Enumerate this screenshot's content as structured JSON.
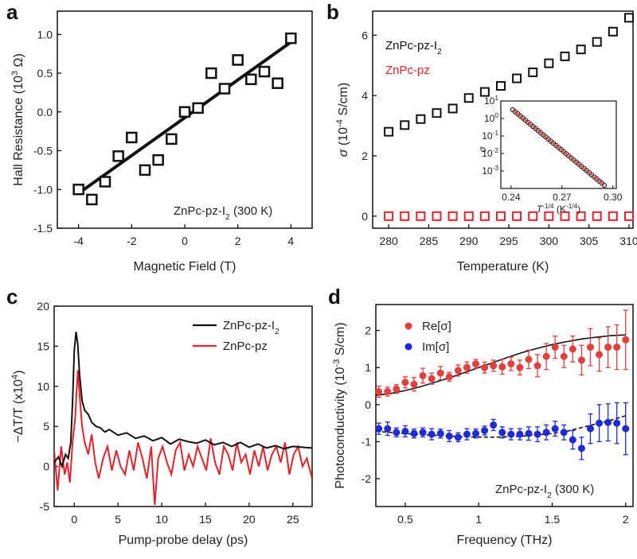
{
  "colors": {
    "black": "#111111",
    "red": "#e8212a",
    "red_marker": "#e0403f",
    "red_fit": "#e03a3a",
    "blue": "#1f2bd4",
    "light_red": "#f06b6b"
  },
  "panel_labels": [
    "a",
    "b",
    "c",
    "d"
  ],
  "chart_data": [
    {
      "id": "a",
      "type": "scatter",
      "xlabel": "Magnetic Field (T)",
      "ylabel": "Hall Resistance (10^3 Ω)",
      "ylabel_parts": {
        "base": "Hall Resistance (10",
        "sup": "3",
        "unit": " Ω)"
      },
      "annotation": "ZnPc-pz-I",
      "annotation_sub": "2",
      "annotation_tail": " (300 K)",
      "xlim": [
        -4.8,
        4.8
      ],
      "ylim": [
        -1.5,
        1.3
      ],
      "xticks": [
        -4,
        -2,
        0,
        2,
        4
      ],
      "xtick_labels": [
        "-4",
        "-2",
        "0",
        "2",
        "4"
      ],
      "yticks": [
        -1.5,
        -1.0,
        -0.5,
        0.0,
        0.5,
        1.0
      ],
      "ytick_labels": [
        "-1.5",
        "-1.0",
        "-0.5",
        "0.0",
        "0.5",
        "1.0"
      ],
      "series": [
        {
          "name": "data",
          "marker": "open-square",
          "x": [
            -4.0,
            -3.5,
            -3.0,
            -2.5,
            -2.0,
            -1.5,
            -1.0,
            -0.5,
            0.0,
            0.5,
            1.0,
            1.5,
            2.0,
            2.5,
            3.0,
            3.5,
            4.0
          ],
          "y": [
            -1.0,
            -1.13,
            -0.9,
            -0.57,
            -0.33,
            -0.75,
            -0.62,
            -0.35,
            0.0,
            0.05,
            0.5,
            0.3,
            0.67,
            0.42,
            0.52,
            0.37,
            0.95
          ]
        },
        {
          "name": "fit",
          "type": "line",
          "x": [
            -4.0,
            4.0
          ],
          "y": [
            -1.05,
            0.9
          ]
        }
      ]
    },
    {
      "id": "b",
      "type": "scatter",
      "xlabel": "Temperature (K)",
      "ylabel_parts": {
        "sym": "σ",
        "base": " (10",
        "sup": "-4",
        "unit": " S/cm)"
      },
      "xlim": [
        278,
        310.5
      ],
      "ylim": [
        -0.4,
        6.8
      ],
      "xticks": [
        280,
        285,
        290,
        295,
        300,
        305,
        310
      ],
      "xtick_labels": [
        "280",
        "285",
        "290",
        "295",
        "300",
        "305",
        "310"
      ],
      "yticks": [
        0,
        2,
        4,
        6
      ],
      "ytick_labels": [
        "0",
        "2",
        "4",
        "6"
      ],
      "legend": [
        {
          "name": "ZnPc-pz-I",
          "sub": "2",
          "color": "#111111"
        },
        {
          "name": "ZnPc-pz",
          "sub": "",
          "color": "#e8212a"
        }
      ],
      "series": [
        {
          "name": "ZnPc-pz-I2",
          "marker": "open-square",
          "color": "#111111",
          "x": [
            280,
            282,
            284,
            286,
            288,
            290,
            292,
            294,
            296,
            298,
            300,
            302,
            304,
            306,
            308,
            310
          ],
          "y": [
            2.8,
            3.02,
            3.22,
            3.42,
            3.57,
            3.92,
            4.12,
            4.32,
            4.57,
            4.77,
            5.07,
            5.3,
            5.53,
            5.78,
            6.12,
            6.58
          ]
        },
        {
          "name": "ZnPc-pz",
          "marker": "open-square",
          "color": "#e8212a",
          "x": [
            280,
            282,
            284,
            286,
            288,
            290,
            292,
            294,
            296,
            298,
            300,
            302,
            304,
            306,
            308,
            310
          ],
          "y": [
            0,
            0,
            0,
            0,
            0,
            0,
            0,
            0,
            0,
            0,
            0,
            0,
            0,
            0,
            0,
            0
          ]
        }
      ],
      "inset": {
        "type": "scatter",
        "xlabel_parts": {
          "sym": "T",
          "sup": "-1/4",
          "unit": " (K",
          "usup": "-1/4",
          "close": ")"
        },
        "ylabel": "σ",
        "xlim": [
          0.234,
          0.302
        ],
        "ylog_range": [
          -4,
          1
        ],
        "xticks": [
          0.24,
          0.27,
          0.3
        ],
        "xtick_labels": [
          "0.24",
          "0.27",
          "0.30"
        ],
        "ytick_exps": [
          1,
          0,
          -1,
          -2,
          -3
        ],
        "ytick_base": "10",
        "ytick_labels": [
          "1",
          "0",
          "-1",
          "-2",
          "-3"
        ],
        "points_x": [
          0.241,
          0.2425,
          0.244,
          0.2455,
          0.247,
          0.2485,
          0.25,
          0.2515,
          0.253,
          0.2545,
          0.256,
          0.2575,
          0.259,
          0.2605,
          0.262,
          0.2635,
          0.265,
          0.2665,
          0.268,
          0.2695,
          0.271,
          0.2725,
          0.274,
          0.2755,
          0.277,
          0.2785,
          0.28,
          0.2815,
          0.283,
          0.2845,
          0.286,
          0.2875,
          0.289,
          0.2905,
          0.292,
          0.2935,
          0.295
        ],
        "points_log_y": [
          0.5,
          0.38,
          0.26,
          0.14,
          0.02,
          -0.1,
          -0.22,
          -0.34,
          -0.46,
          -0.58,
          -0.7,
          -0.82,
          -0.94,
          -1.06,
          -1.18,
          -1.3,
          -1.42,
          -1.54,
          -1.66,
          -1.78,
          -1.9,
          -2.02,
          -2.14,
          -2.26,
          -2.38,
          -2.5,
          -2.62,
          -2.74,
          -2.86,
          -2.98,
          -3.1,
          -3.22,
          -3.34,
          -3.46,
          -3.58,
          -3.7,
          -3.82
        ],
        "fit_x": [
          0.241,
          0.295
        ],
        "fit_log_y": [
          0.5,
          -3.82
        ]
      }
    },
    {
      "id": "c",
      "type": "line",
      "xlabel": "Pump-probe delay (ps)",
      "ylabel_parts": {
        "base": "−ΔT/T (x10",
        "sup": "4",
        "unit": ")"
      },
      "xlim": [
        -2.3,
        27.2
      ],
      "ylim": [
        -5,
        20
      ],
      "xticks": [
        0,
        5,
        10,
        15,
        20,
        25
      ],
      "xtick_labels": [
        "0",
        "5",
        "10",
        "15",
        "20",
        "25"
      ],
      "yticks": [
        -5,
        0,
        5,
        10,
        15,
        20
      ],
      "ytick_labels": [
        "-5",
        "0",
        "5",
        "10",
        "15",
        "20"
      ],
      "legend": [
        {
          "name": "ZnPc-pz-I",
          "sub": "2",
          "color": "#111111"
        },
        {
          "name": "ZnPc-pz",
          "sub": "",
          "color": "#e8212a"
        }
      ],
      "series": [
        {
          "name": "ZnPc-pz-I2",
          "color": "#111111",
          "x": [
            -2.3,
            -1.8,
            -1.4,
            -1.0,
            -0.7,
            -0.4,
            -0.2,
            0.0,
            0.2,
            0.4,
            0.6,
            0.9,
            1.2,
            1.6,
            2.0,
            2.5,
            3.0,
            3.5,
            4.0,
            5,
            6,
            7,
            8,
            9,
            10,
            11,
            12,
            13,
            14,
            15,
            16,
            17,
            18,
            19,
            20,
            21,
            22,
            23,
            24,
            25,
            26,
            27.2
          ],
          "y": [
            0.5,
            1.2,
            0.0,
            1.5,
            1.0,
            3.0,
            8.0,
            14.5,
            16.8,
            15.2,
            11.5,
            8.2,
            7.0,
            6.5,
            5.5,
            5.0,
            4.8,
            4.3,
            4.6,
            3.9,
            4.2,
            3.5,
            3.8,
            3.2,
            3.6,
            2.8,
            3.4,
            3.1,
            2.9,
            3.3,
            2.7,
            3.0,
            2.5,
            3.0,
            2.4,
            2.8,
            2.3,
            2.6,
            2.2,
            2.5,
            2.4,
            2.3
          ]
        },
        {
          "name": "ZnPc-pz",
          "color": "#e8212a",
          "x": [
            -2.3,
            -1.9,
            -1.5,
            -1.1,
            -0.8,
            -0.5,
            -0.2,
            0.1,
            0.4,
            0.6,
            0.9,
            1.2,
            1.6,
            2.0,
            2.4,
            2.8,
            3.3,
            3.8,
            4.3,
            4.8,
            5.3,
            5.8,
            6.3,
            6.8,
            7.3,
            7.8,
            8.3,
            8.8,
            9.2,
            9.6,
            10.1,
            10.6,
            11.1,
            11.6,
            12.1,
            12.6,
            13.1,
            13.6,
            14.1,
            14.6,
            15.1,
            15.6,
            16.1,
            16.6,
            17.1,
            17.6,
            18.1,
            18.6,
            19.1,
            19.6,
            20.1,
            20.6,
            21.1,
            21.6,
            22.1,
            22.6,
            23.1,
            23.6,
            24.1,
            24.6,
            25.1,
            25.6,
            26.1,
            26.6,
            27.2
          ],
          "y": [
            2.0,
            -3.0,
            2.5,
            -1.0,
            0.5,
            -2.0,
            3.0,
            6.0,
            12.0,
            9.0,
            5.0,
            3.0,
            1.5,
            4.0,
            0.5,
            -1.5,
            1.0,
            2.5,
            -0.5,
            2.0,
            0.0,
            -1.0,
            2.0,
            -0.5,
            3.0,
            1.0,
            -1.5,
            2.5,
            -4.8,
            1.0,
            2.5,
            0.5,
            -1.0,
            2.0,
            3.0,
            -0.5,
            1.5,
            0.0,
            2.5,
            1.0,
            -0.5,
            3.5,
            0.5,
            -1.0,
            2.5,
            1.5,
            -0.5,
            3.0,
            0.5,
            1.5,
            -1.0,
            2.0,
            0.0,
            2.5,
            -0.5,
            1.5,
            2.5,
            0.5,
            3.0,
            -1.0,
            1.5,
            2.5,
            0.0,
            1.0,
            -1.5
          ]
        }
      ]
    },
    {
      "id": "d",
      "type": "scatter",
      "xlabel": "Frequency (THz)",
      "ylabel_parts": {
        "base": "Photoconductivity (10",
        "sup": "-3",
        "unit": " S/cm)"
      },
      "annotation": "ZnPc-pz-I",
      "annotation_sub": "2",
      "annotation_tail": " (300 K)",
      "xlim": [
        0.3,
        2.05
      ],
      "ylim": [
        -2.75,
        2.7
      ],
      "xticks": [
        0.5,
        1.0,
        1.5,
        2.0
      ],
      "xtick_labels": [
        "0.5",
        "1",
        "1.5",
        "2"
      ],
      "yticks": [
        -2,
        -1,
        0,
        1,
        2
      ],
      "ytick_labels": [
        "-2",
        "-1",
        "0",
        "1",
        "2"
      ],
      "legend": [
        {
          "name": "Re[σ]",
          "color": "#e0403f"
        },
        {
          "name": "Im[σ]",
          "color": "#1f2bd4"
        }
      ],
      "series": [
        {
          "name": "Re[σ]",
          "color": "#e0403f",
          "x": [
            0.32,
            0.38,
            0.44,
            0.5,
            0.56,
            0.62,
            0.68,
            0.74,
            0.8,
            0.86,
            0.92,
            0.98,
            1.04,
            1.1,
            1.16,
            1.22,
            1.28,
            1.34,
            1.4,
            1.46,
            1.52,
            1.58,
            1.64,
            1.7,
            1.76,
            1.82,
            1.88,
            1.94,
            2.0
          ],
          "y": [
            0.35,
            0.35,
            0.42,
            0.6,
            0.55,
            0.78,
            0.7,
            0.85,
            0.75,
            0.92,
            1.0,
            1.1,
            1.0,
            1.05,
            1.02,
            1.1,
            1.0,
            1.22,
            1.05,
            1.3,
            1.55,
            1.3,
            1.5,
            1.2,
            1.55,
            1.35,
            1.55,
            1.55,
            1.75
          ],
          "err": [
            0.15,
            0.12,
            0.12,
            0.15,
            0.18,
            0.2,
            0.15,
            0.18,
            0.12,
            0.15,
            0.15,
            0.12,
            0.15,
            0.15,
            0.2,
            0.18,
            0.2,
            0.25,
            0.3,
            0.35,
            0.3,
            0.3,
            0.35,
            0.4,
            0.5,
            0.45,
            0.55,
            0.6,
            0.8
          ]
        },
        {
          "name": "Im[σ]",
          "color": "#1f2bd4",
          "x": [
            0.32,
            0.38,
            0.44,
            0.5,
            0.56,
            0.62,
            0.68,
            0.74,
            0.8,
            0.86,
            0.92,
            0.98,
            1.04,
            1.1,
            1.16,
            1.22,
            1.28,
            1.34,
            1.4,
            1.46,
            1.52,
            1.58,
            1.64,
            1.7,
            1.76,
            1.82,
            1.88,
            1.94,
            2.0
          ],
          "y": [
            -0.65,
            -0.65,
            -0.75,
            -0.72,
            -0.78,
            -0.75,
            -0.8,
            -0.78,
            -0.85,
            -0.88,
            -0.8,
            -0.78,
            -0.7,
            -0.55,
            -0.75,
            -0.8,
            -0.8,
            -0.78,
            -0.8,
            -0.75,
            -0.65,
            -0.75,
            -0.95,
            -1.18,
            -0.65,
            -0.5,
            -0.48,
            -0.5,
            -0.65
          ],
          "err": [
            0.15,
            0.18,
            0.12,
            0.15,
            0.12,
            0.12,
            0.15,
            0.12,
            0.15,
            0.12,
            0.15,
            0.12,
            0.12,
            0.15,
            0.15,
            0.15,
            0.15,
            0.18,
            0.2,
            0.2,
            0.2,
            0.2,
            0.25,
            0.3,
            0.4,
            0.5,
            0.5,
            0.55,
            0.7
          ]
        },
        {
          "name": "Re fit",
          "type": "line",
          "style": "solid",
          "x": [
            0.3,
            0.4,
            0.5,
            0.6,
            0.7,
            0.8,
            0.9,
            1.0,
            1.1,
            1.2,
            1.3,
            1.4,
            1.5,
            1.6,
            1.7,
            1.8,
            1.9,
            2.0
          ],
          "y": [
            0.25,
            0.3,
            0.38,
            0.48,
            0.6,
            0.72,
            0.86,
            1.0,
            1.14,
            1.28,
            1.41,
            1.52,
            1.62,
            1.7,
            1.77,
            1.82,
            1.86,
            1.88
          ]
        },
        {
          "name": "Im fit",
          "type": "line",
          "style": "dashed",
          "x": [
            0.3,
            0.5,
            0.7,
            0.9,
            1.1,
            1.3,
            1.5,
            1.6,
            1.7,
            1.8,
            1.9,
            2.0
          ],
          "y": [
            -0.72,
            -0.78,
            -0.83,
            -0.87,
            -0.88,
            -0.85,
            -0.78,
            -0.72,
            -0.62,
            -0.52,
            -0.42,
            -0.3
          ]
        }
      ]
    }
  ]
}
